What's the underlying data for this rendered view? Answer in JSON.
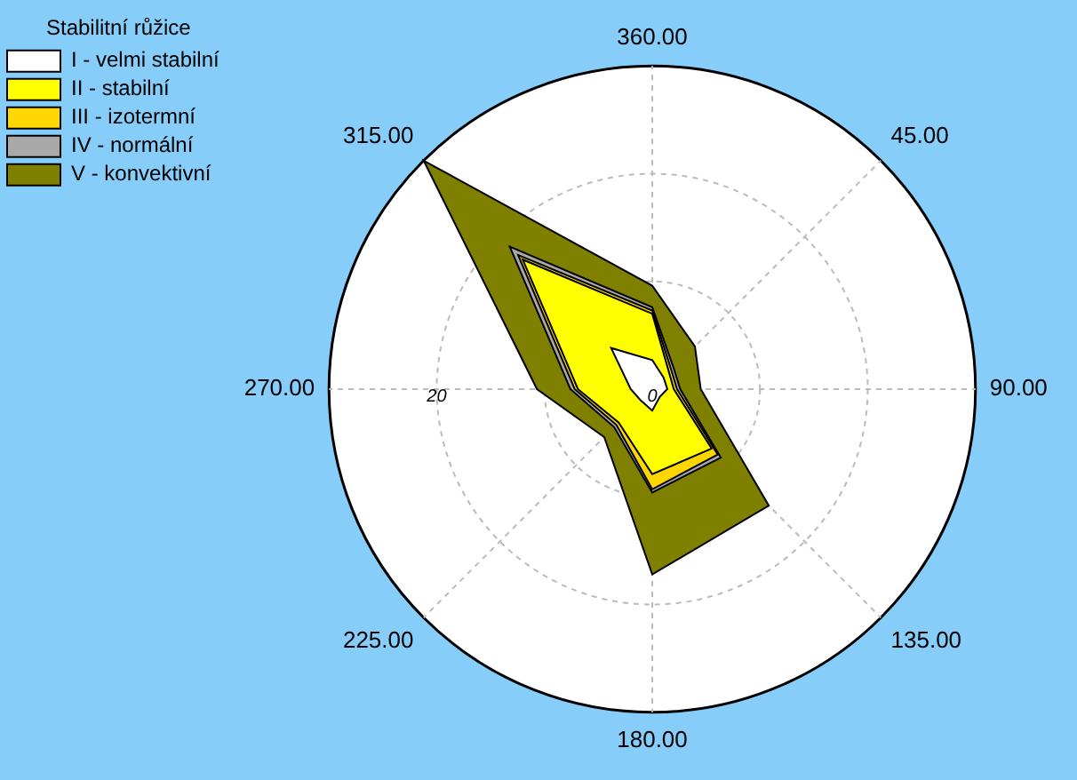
{
  "chart_data": {
    "type": "radar",
    "legend_title": "Stabilitní růžice",
    "categories": [
      "360.00",
      "45.00",
      "90.00",
      "135.00",
      "180.00",
      "225.00",
      "270.00",
      "315.00"
    ],
    "series": [
      {
        "name": "I - velmi stabilní",
        "color": "#ffffff",
        "values": [
          2.7,
          1.5,
          1.4,
          1,
          2,
          1.5,
          2,
          5.4
        ]
      },
      {
        "name": "II - stabilní",
        "color": "#ffff00",
        "values": [
          7,
          2.2,
          2,
          7.8,
          7.9,
          4.4,
          6.9,
          17
        ]
      },
      {
        "name": "III - izotermní",
        "color": "#ffd700",
        "values": [
          7.3,
          2.5,
          2.3,
          8.6,
          9.3,
          4.7,
          7.2,
          17.6
        ]
      },
      {
        "name": "IV - normální",
        "color": "#a9a9a9",
        "values": [
          7.6,
          2.8,
          2.6,
          9,
          9.6,
          5,
          7.6,
          18.7
        ]
      },
      {
        "name": "V - konvektivní",
        "color": "#808000",
        "values": [
          9.6,
          5.6,
          4.5,
          15.3,
          17.2,
          6.3,
          10.7,
          30
        ]
      }
    ],
    "ylim": [
      0,
      30
    ],
    "yticks": [
      0,
      20
    ],
    "grid": true,
    "legend": "top left",
    "marker": "none"
  }
}
